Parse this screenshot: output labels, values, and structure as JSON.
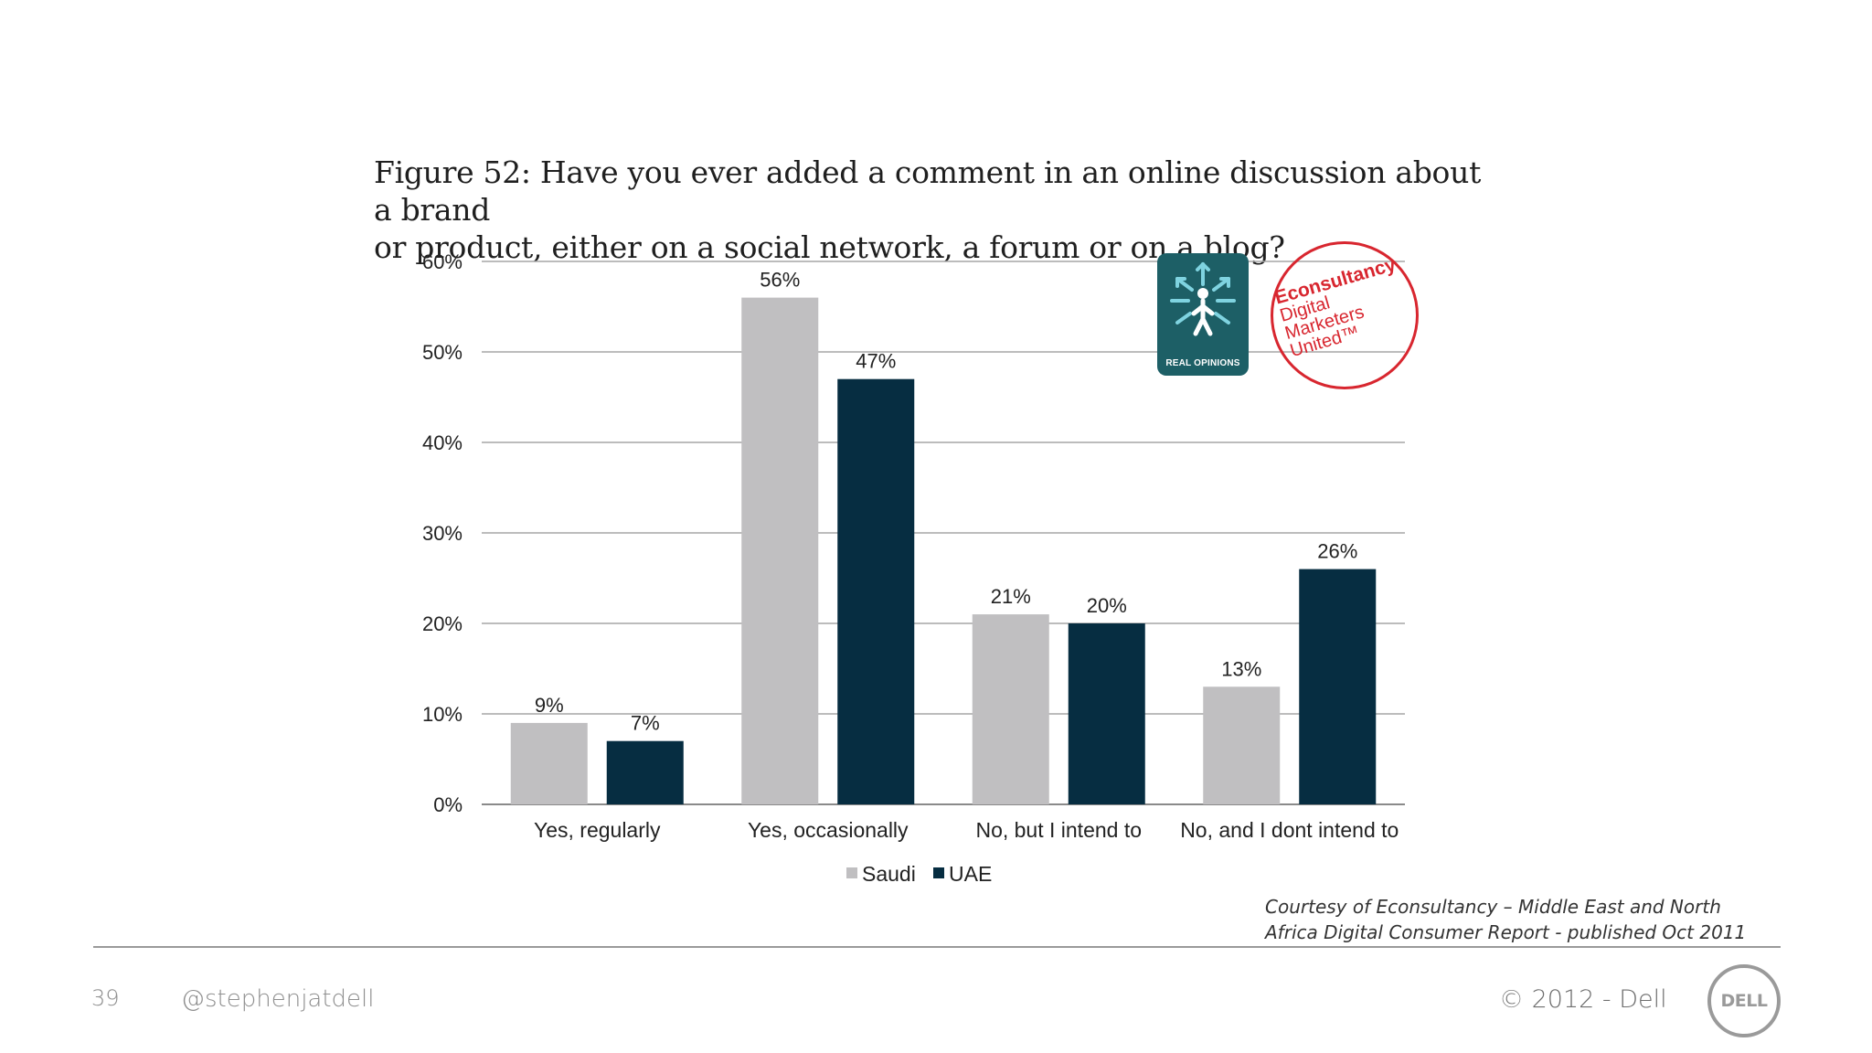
{
  "figure": {
    "title_line1": "Figure 52: Have you ever added a comment in an online discussion about a brand",
    "title_line2": "or product, either on a social network, a forum or on a blog?"
  },
  "chart_data": {
    "type": "bar",
    "categories": [
      "Yes, regularly",
      "Yes, occasionally",
      "No, but I intend to",
      "No, and I dont intend to"
    ],
    "series": [
      {
        "name": "Saudi",
        "values": [
          9,
          56,
          21,
          13
        ],
        "color": "#c0bfc1"
      },
      {
        "name": "UAE",
        "values": [
          7,
          47,
          20,
          26
        ],
        "color": "#062d41"
      }
    ],
    "value_suffix": "%",
    "ylim": [
      0,
      60
    ],
    "yticks": [
      0,
      10,
      20,
      30,
      40,
      50,
      60
    ],
    "ytick_labels": [
      "0%",
      "10%",
      "20%",
      "30%",
      "40%",
      "50%",
      "60%"
    ],
    "grid": true,
    "legend": "bottom-center"
  },
  "logos": {
    "badge_text": "REAL OPINIONS",
    "badge_icon": "snowflake-person-icon",
    "badge_color": "#1d5f66",
    "econ_brand": "Econsultancy",
    "econ_line1": "Digital",
    "econ_line2": "Marketers",
    "econ_line3": "United™",
    "econ_color": "#d8262f"
  },
  "courtesy": {
    "line1": "Courtesy of  Econsultancy – Middle East and  North",
    "line2": "Africa Digital Consumer Report -  published Oct 2011"
  },
  "footer": {
    "slide_number": "39",
    "handle": "@stephenjatdell",
    "copyright": "© 2012 - Dell",
    "logo_text": "DELL"
  }
}
